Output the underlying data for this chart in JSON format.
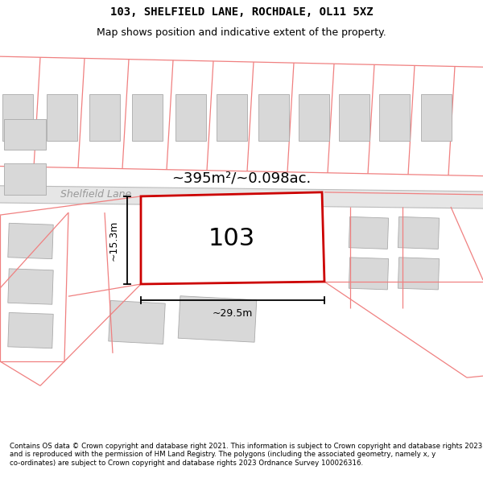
{
  "title_line1": "103, SHELFIELD LANE, ROCHDALE, OL11 5XZ",
  "title_line2": "Map shows position and indicative extent of the property.",
  "footer_text": "Contains OS data © Crown copyright and database right 2021. This information is subject to Crown copyright and database rights 2023 and is reproduced with the permission of HM Land Registry. The polygons (including the associated geometry, namely x, y co-ordinates) are subject to Crown copyright and database rights 2023 Ordnance Survey 100026316.",
  "map_bg": "#f8f8f8",
  "plot_outline_color": "#cc0000",
  "red_line_color": "#f08080",
  "building_fill": "#d8d8d8",
  "building_stroke": "#aaaaaa",
  "road_fill": "#eeeeee",
  "road_stroke": "#bbbbbb",
  "area_text": "~395m²/~0.098ac.",
  "label_103": "103",
  "dim_width": "~29.5m",
  "dim_height": "~15.3m",
  "street_label": "Shelfield Lane",
  "title_fontsize": 10,
  "subtitle_fontsize": 9,
  "footer_fontsize": 6.2
}
